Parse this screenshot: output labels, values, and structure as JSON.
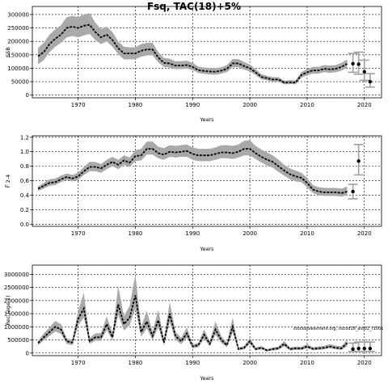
{
  "page": {
    "title": "Fsq, TAC(18)+5%",
    "watermark": "stockassessment.org, nscod18_ass02_r1001"
  },
  "chart_data": [
    {
      "type": "area",
      "title": "Fsq, TAC(18)+5%",
      "xlabel": "Years",
      "ylabel": "SSB",
      "xlim": [
        1962,
        2023
      ],
      "ylim": [
        -10000,
        330000
      ],
      "xticks": [
        1970,
        1980,
        1990,
        2000,
        2010,
        2020
      ],
      "yticks": [
        0,
        50000,
        100000,
        150000,
        200000,
        250000,
        300000
      ],
      "grid": true,
      "x": [
        1963,
        1964,
        1965,
        1966,
        1967,
        1968,
        1969,
        1970,
        1971,
        1972,
        1973,
        1974,
        1975,
        1976,
        1977,
        1978,
        1979,
        1980,
        1981,
        1982,
        1983,
        1984,
        1985,
        1986,
        1987,
        1988,
        1989,
        1990,
        1991,
        1992,
        1993,
        1994,
        1995,
        1996,
        1997,
        1998,
        1999,
        2000,
        2001,
        2002,
        2003,
        2004,
        2005,
        2006,
        2007,
        2008,
        2009,
        2010,
        2011,
        2012,
        2013,
        2014,
        2015,
        2016,
        2017
      ],
      "mean": [
        145000,
        160000,
        190000,
        210000,
        225000,
        250000,
        255000,
        250000,
        258000,
        262000,
        235000,
        215000,
        225000,
        205000,
        175000,
        155000,
        155000,
        155000,
        165000,
        170000,
        170000,
        140000,
        120000,
        118000,
        110000,
        110000,
        112000,
        105000,
        93000,
        90000,
        88000,
        87000,
        91000,
        98000,
        118000,
        118000,
        108000,
        100000,
        85000,
        68000,
        63000,
        58000,
        58000,
        47000,
        48000,
        47000,
        75000,
        85000,
        92000,
        92000,
        98000,
        96000,
        98000,
        105000,
        117000
      ],
      "lower": [
        115000,
        130000,
        160000,
        180000,
        195000,
        215000,
        220000,
        215000,
        222000,
        228000,
        205000,
        190000,
        200000,
        180000,
        152000,
        133000,
        133000,
        134000,
        143000,
        148000,
        148000,
        122000,
        105000,
        103000,
        97000,
        97000,
        99000,
        93000,
        82000,
        79000,
        77000,
        76000,
        80000,
        86000,
        104000,
        104000,
        95000,
        88000,
        75000,
        59000,
        55000,
        50000,
        50000,
        40000,
        41000,
        40000,
        65000,
        74000,
        80000,
        80000,
        85000,
        83000,
        85000,
        91000,
        102000
      ],
      "upper": [
        175000,
        195000,
        225000,
        245000,
        260000,
        290000,
        295000,
        290000,
        300000,
        305000,
        270000,
        245000,
        255000,
        235000,
        200000,
        180000,
        178000,
        178000,
        190000,
        195000,
        195000,
        160000,
        138000,
        135000,
        126000,
        126000,
        128000,
        120000,
        106000,
        103000,
        101000,
        100000,
        104000,
        112000,
        134000,
        134000,
        123000,
        114000,
        97000,
        78000,
        72000,
        67000,
        67000,
        54000,
        56000,
        55000,
        86000,
        97000,
        105000,
        105000,
        112000,
        110000,
        112000,
        120000,
        133000
      ],
      "forecast": [
        {
          "x": 2018,
          "y": 117000,
          "lo": 85000,
          "hi": 155000
        },
        {
          "x": 2019,
          "y": 115000,
          "lo": 78000,
          "hi": 160000
        },
        {
          "x": 2020,
          "y": 87000,
          "lo": 55000,
          "hi": 130000
        },
        {
          "x": 2021,
          "y": 50000,
          "lo": 30000,
          "hi": 80000
        }
      ]
    },
    {
      "type": "area",
      "xlabel": "Years",
      "ylabel": "F̅ 2-4",
      "xlim": [
        1962,
        2023
      ],
      "ylim": [
        -0.03,
        1.22
      ],
      "xticks": [
        1970,
        1980,
        1990,
        2000,
        2010,
        2020
      ],
      "yticks": [
        "0.0",
        "0.2",
        "0.4",
        "0.6",
        "0.8",
        "1.0",
        "1.2"
      ],
      "grid": true,
      "x": [
        1963,
        1964,
        1965,
        1966,
        1967,
        1968,
        1969,
        1970,
        1971,
        1972,
        1973,
        1974,
        1975,
        1976,
        1977,
        1978,
        1979,
        1980,
        1981,
        1982,
        1983,
        1984,
        1985,
        1986,
        1987,
        1988,
        1989,
        1990,
        1991,
        1992,
        1993,
        1994,
        1995,
        1996,
        1997,
        1998,
        1999,
        2000,
        2001,
        2002,
        2003,
        2004,
        2005,
        2006,
        2007,
        2008,
        2009,
        2010,
        2011,
        2012,
        2013,
        2014,
        2015,
        2016,
        2017
      ],
      "mean": [
        0.49,
        0.53,
        0.57,
        0.58,
        0.62,
        0.65,
        0.63,
        0.66,
        0.73,
        0.79,
        0.79,
        0.77,
        0.82,
        0.86,
        0.82,
        0.88,
        0.85,
        0.94,
        0.95,
        1.04,
        1.04,
        0.98,
        0.96,
        1.0,
        0.99,
        1.0,
        1.01,
        0.97,
        0.95,
        0.95,
        0.95,
        0.97,
        0.99,
        0.99,
        0.98,
        1.0,
        1.04,
        1.04,
        0.98,
        0.93,
        0.89,
        0.86,
        0.8,
        0.74,
        0.69,
        0.66,
        0.64,
        0.57,
        0.48,
        0.45,
        0.44,
        0.44,
        0.44,
        0.43,
        0.45
      ],
      "lower": [
        0.46,
        0.49,
        0.53,
        0.54,
        0.58,
        0.61,
        0.59,
        0.61,
        0.68,
        0.73,
        0.73,
        0.71,
        0.76,
        0.8,
        0.76,
        0.82,
        0.79,
        0.87,
        0.88,
        0.96,
        0.96,
        0.91,
        0.89,
        0.93,
        0.92,
        0.93,
        0.93,
        0.89,
        0.87,
        0.87,
        0.87,
        0.89,
        0.91,
        0.91,
        0.9,
        0.92,
        0.95,
        0.95,
        0.9,
        0.85,
        0.81,
        0.78,
        0.72,
        0.67,
        0.62,
        0.59,
        0.58,
        0.51,
        0.43,
        0.4,
        0.39,
        0.39,
        0.39,
        0.38,
        0.4
      ],
      "upper": [
        0.52,
        0.57,
        0.62,
        0.63,
        0.67,
        0.7,
        0.68,
        0.71,
        0.79,
        0.86,
        0.86,
        0.83,
        0.89,
        0.93,
        0.89,
        0.95,
        0.92,
        1.02,
        1.04,
        1.14,
        1.14,
        1.07,
        1.05,
        1.09,
        1.08,
        1.09,
        1.1,
        1.06,
        1.04,
        1.04,
        1.04,
        1.06,
        1.09,
        1.09,
        1.08,
        1.1,
        1.15,
        1.16,
        1.08,
        1.03,
        0.99,
        0.95,
        0.89,
        0.82,
        0.77,
        0.74,
        0.71,
        0.64,
        0.54,
        0.51,
        0.5,
        0.5,
        0.5,
        0.49,
        0.52
      ],
      "forecast": [
        {
          "x": 2018,
          "y": 0.45,
          "lo": 0.35,
          "hi": 0.55
        },
        {
          "x": 2019,
          "y": 0.87,
          "lo": 0.68,
          "hi": 1.1
        }
      ]
    },
    {
      "type": "area",
      "xlabel": "Years",
      "ylabel": "Rec (age 1)",
      "xlim": [
        1962,
        2023
      ],
      "ylim": [
        -100000,
        3350000
      ],
      "xticks": [
        1970,
        1980,
        1990,
        2000,
        2010,
        2020
      ],
      "yticks": [
        0,
        500000,
        1000000,
        1500000,
        2000000,
        2500000,
        3000000
      ],
      "grid": true,
      "x": [
        1963,
        1964,
        1965,
        1966,
        1967,
        1968,
        1969,
        1970,
        1971,
        1972,
        1973,
        1974,
        1975,
        1976,
        1977,
        1978,
        1979,
        1980,
        1981,
        1982,
        1983,
        1984,
        1985,
        1986,
        1987,
        1988,
        1989,
        1990,
        1991,
        1992,
        1993,
        1994,
        1995,
        1996,
        1997,
        1998,
        1999,
        2000,
        2001,
        2002,
        2003,
        2004,
        2005,
        2006,
        2007,
        2008,
        2009,
        2010,
        2011,
        2012,
        2013,
        2014,
        2015,
        2016,
        2017
      ],
      "mean": [
        380000,
        600000,
        800000,
        1000000,
        900000,
        450000,
        400000,
        1300000,
        1700000,
        450000,
        600000,
        600000,
        1100000,
        600000,
        1850000,
        1100000,
        1350000,
        2200000,
        800000,
        1200000,
        650000,
        1250000,
        400000,
        1500000,
        650000,
        450000,
        750000,
        250000,
        300000,
        700000,
        350000,
        900000,
        500000,
        300000,
        1000000,
        150000,
        200000,
        450000,
        150000,
        200000,
        100000,
        150000,
        180000,
        350000,
        150000,
        180000,
        170000,
        250000,
        160000,
        180000,
        200000,
        250000,
        200000,
        180000,
        380000
      ],
      "lower": [
        300000,
        480000,
        650000,
        820000,
        730000,
        350000,
        300000,
        1050000,
        1350000,
        350000,
        470000,
        470000,
        880000,
        470000,
        1450000,
        860000,
        1060000,
        1700000,
        620000,
        940000,
        500000,
        980000,
        300000,
        1170000,
        500000,
        340000,
        580000,
        180000,
        220000,
        540000,
        260000,
        700000,
        380000,
        220000,
        780000,
        100000,
        140000,
        340000,
        100000,
        140000,
        60000,
        100000,
        120000,
        260000,
        100000,
        120000,
        110000,
        180000,
        110000,
        120000,
        140000,
        180000,
        140000,
        120000,
        260000
      ],
      "upper": [
        470000,
        750000,
        980000,
        1220000,
        1100000,
        560000,
        500000,
        1600000,
        2300000,
        570000,
        750000,
        760000,
        1400000,
        760000,
        2550000,
        1400000,
        1800000,
        3000000,
        1000000,
        1600000,
        820000,
        1650000,
        520000,
        1950000,
        820000,
        580000,
        980000,
        330000,
        390000,
        900000,
        450000,
        1200000,
        650000,
        400000,
        1350000,
        210000,
        270000,
        580000,
        210000,
        270000,
        150000,
        210000,
        250000,
        460000,
        210000,
        250000,
        240000,
        340000,
        220000,
        250000,
        280000,
        340000,
        280000,
        260000,
        520000
      ],
      "forecast": [
        {
          "x": 2018,
          "y": 150000,
          "lo": 60000,
          "hi": 380000
        },
        {
          "x": 2019,
          "y": 170000,
          "lo": 60000,
          "hi": 420000
        },
        {
          "x": 2020,
          "y": 170000,
          "lo": 60000,
          "hi": 420000
        },
        {
          "x": 2021,
          "y": 170000,
          "lo": 60000,
          "hi": 420000
        }
      ]
    }
  ]
}
